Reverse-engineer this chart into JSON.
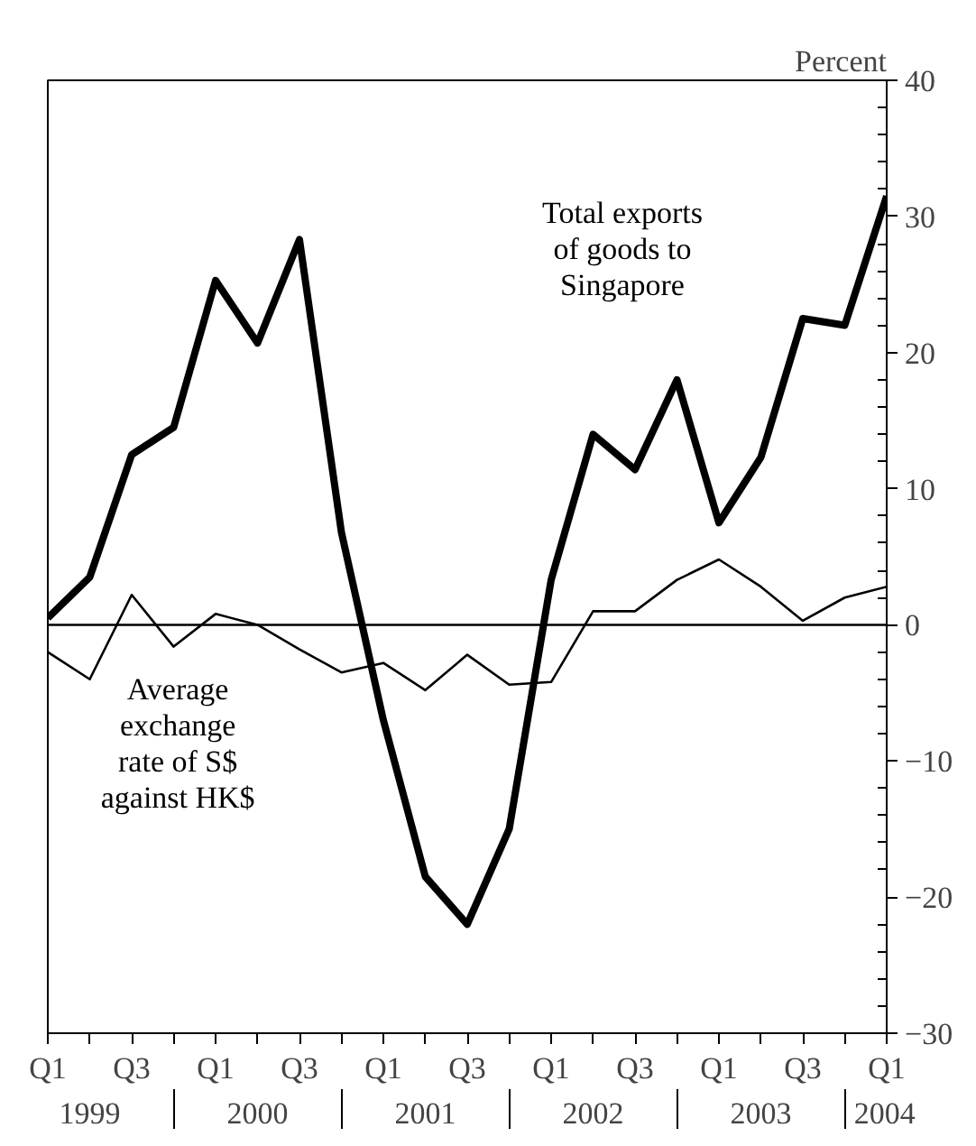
{
  "chart_data": {
    "type": "line",
    "ylabel": "Percent",
    "categories": [
      "Q1",
      null,
      "Q3",
      null,
      "Q1",
      null,
      "Q3",
      null,
      "Q1",
      null,
      "Q3",
      null,
      "Q1",
      null,
      "Q3",
      null,
      "Q1",
      null,
      "Q3",
      null,
      "Q1"
    ],
    "series": [
      {
        "name": "Total exports\nof goods to\nSingapore",
        "color": "#000000",
        "values": [
          0.5,
          3.5,
          12.5,
          14.5,
          25.3,
          20.7,
          28.3,
          6.8,
          -7.0,
          -18.5,
          -22.0,
          -15.0,
          3.3,
          14.0,
          11.4,
          18.0,
          7.5,
          12.3,
          22.5,
          22.0,
          31.5
        ]
      },
      {
        "name": "Average\nexchange\nrate of S$\nagainst HK$",
        "color": "#000000",
        "values": [
          -2.0,
          -4.0,
          2.2,
          -1.6,
          0.8,
          0.0,
          -1.8,
          -3.5,
          -2.8,
          -4.8,
          -2.2,
          -4.4,
          -4.2,
          1.0,
          1.0,
          3.3,
          4.8,
          2.8,
          0.3,
          2.0,
          2.8
        ]
      }
    ],
    "annotations": [
      "1999",
      "2000",
      "2001",
      "2002",
      "2003",
      "2004"
    ],
    "ylim": [
      -30,
      40
    ],
    "yticks": [
      -30,
      -20,
      -10,
      0,
      10,
      20,
      30,
      40
    ],
    "ref_lines": [
      {
        "axis": "y",
        "value": 0,
        "color": "#000000"
      }
    ],
    "grid": false,
    "marker": "none",
    "line_style": "solid"
  }
}
